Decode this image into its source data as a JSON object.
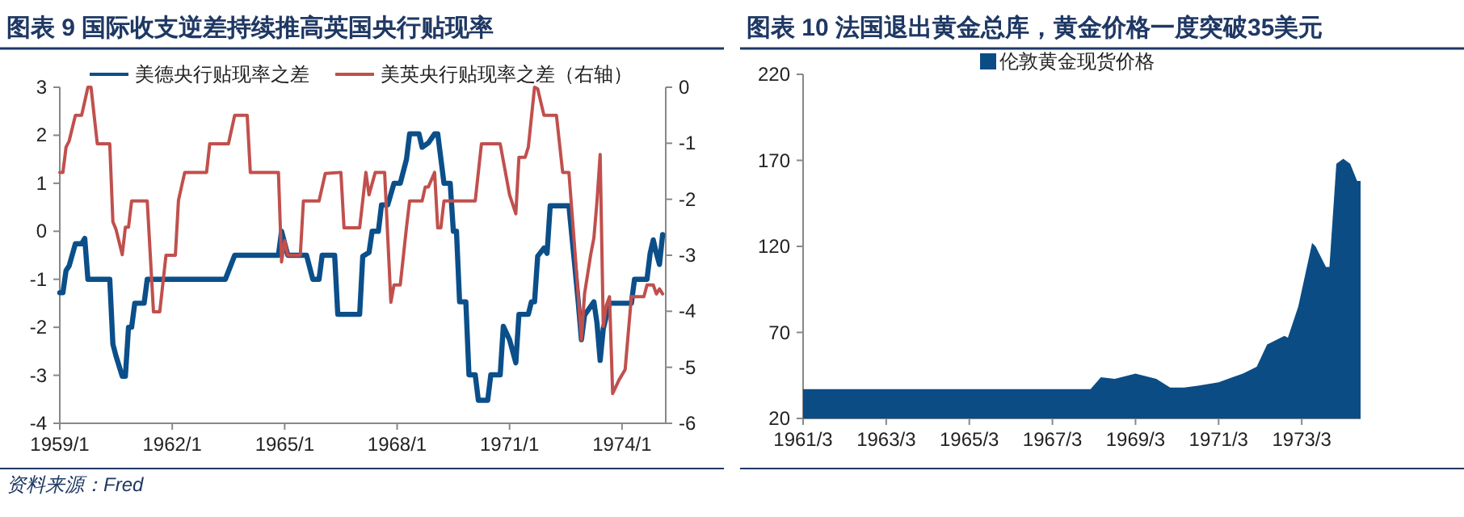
{
  "chart_data": [
    {
      "type": "line",
      "title": "图表 9  国际收支逆差持续推高英国央行贴现率",
      "legend": "top",
      "grid": false,
      "xlim": [
        "1959-01",
        "1975-03"
      ],
      "xticks": [
        {
          "value": "1959-01",
          "label": "1959/1"
        },
        {
          "value": "1962-01",
          "label": "1962/1"
        },
        {
          "value": "1965-01",
          "label": "1965/1"
        },
        {
          "value": "1968-01",
          "label": "1968/1"
        },
        {
          "value": "1971-01",
          "label": "1971/1"
        },
        {
          "value": "1974-01",
          "label": "1974/1"
        }
      ],
      "ylim": [
        -4,
        3
      ],
      "yticks": [
        -4,
        -3,
        -2,
        -1,
        0,
        1,
        2,
        3
      ],
      "y2lim": [
        -6,
        0
      ],
      "y2ticks": [
        -6,
        -5,
        -4,
        -3,
        -2,
        -1,
        0
      ],
      "annotations": [
        "资料来源：Fred"
      ],
      "series": [
        {
          "name": "美德央行贴现率之差",
          "color": "#0b4f8a",
          "axis": "y",
          "x": [
            "1959-01",
            "1959-02",
            "1959-03",
            "1959-04",
            "1959-06",
            "1959-08",
            "1959-09",
            "1959-10",
            "1960-05",
            "1960-06",
            "1960-07",
            "1960-09",
            "1960-10",
            "1960-11",
            "1960-12",
            "1961-01",
            "1961-04",
            "1961-05",
            "1963-06",
            "1963-09",
            "1964-11",
            "1964-12",
            "1965-02",
            "1965-08",
            "1965-10",
            "1965-12",
            "1966-01",
            "1966-05",
            "1966-06",
            "1967-01",
            "1967-02",
            "1967-04",
            "1967-05",
            "1967-07",
            "1967-08",
            "1967-10",
            "1967-12",
            "1968-02",
            "1968-04",
            "1968-05",
            "1968-08",
            "1968-09",
            "1968-11",
            "1969-01",
            "1969-02",
            "1969-04",
            "1969-06",
            "1969-07",
            "1969-08",
            "1969-09",
            "1969-11",
            "1969-12",
            "1970-02",
            "1970-03",
            "1970-06",
            "1970-07",
            "1970-10",
            "1970-11",
            "1971-01",
            "1971-03",
            "1971-04",
            "1971-07",
            "1971-08",
            "1971-09",
            "1971-10",
            "1971-12",
            "1972-01",
            "1972-02",
            "1972-08",
            "1972-10",
            "1972-11",
            "1972-12",
            "1973-01",
            "1973-04",
            "1973-05",
            "1973-06",
            "1973-07",
            "1973-09",
            "1974-04",
            "1974-05",
            "1974-09",
            "1974-10",
            "1974-11",
            "1974-12",
            "1975-01",
            "1975-02"
          ],
          "values": [
            -1.28,
            -1.28,
            -0.82,
            -0.72,
            -0.26,
            -0.26,
            -0.15,
            -1.0,
            -1.0,
            -2.35,
            -2.6,
            -3.02,
            -3.02,
            -2.0,
            -2.0,
            -1.5,
            -1.5,
            -1.0,
            -1.0,
            -0.5,
            -0.5,
            0.0,
            -0.5,
            -0.5,
            -1.0,
            -1.0,
            -0.5,
            -0.5,
            -1.73,
            -1.73,
            -0.52,
            -0.44,
            0.0,
            0.0,
            0.55,
            0.55,
            1.0,
            1.0,
            1.5,
            2.03,
            2.03,
            1.75,
            1.84,
            2.03,
            2.03,
            1.0,
            1.0,
            0.0,
            0.0,
            -1.47,
            -1.47,
            -2.99,
            -2.99,
            -3.52,
            -3.52,
            -2.99,
            -2.99,
            -1.98,
            -2.26,
            -2.74,
            -1.73,
            -1.73,
            -1.47,
            -1.47,
            -0.52,
            -0.35,
            -0.46,
            0.53,
            0.53,
            -0.8,
            -1.49,
            -2.26,
            -1.75,
            -1.47,
            -1.92,
            -2.69,
            -2.03,
            -1.5,
            -1.5,
            -1.0,
            -1.0,
            -0.46,
            -0.18,
            -0.46,
            -0.69,
            -0.07
          ]
        },
        {
          "name": "美英央行贴现率之差（右轴）",
          "color": "#c0504d",
          "axis": "y2",
          "x": [
            "1959-01",
            "1959-02",
            "1959-03",
            "1959-04",
            "1959-06",
            "1959-08",
            "1959-10",
            "1959-11",
            "1960-01",
            "1960-05",
            "1960-06",
            "1960-07",
            "1960-09",
            "1960-10",
            "1960-11",
            "1960-12",
            "1961-05",
            "1961-07",
            "1961-09",
            "1961-11",
            "1962-02",
            "1962-03",
            "1962-05",
            "1962-12",
            "1963-01",
            "1963-07",
            "1963-09",
            "1964-01",
            "1964-02",
            "1964-11",
            "1964-12",
            "1965-01",
            "1965-02",
            "1965-06",
            "1965-07",
            "1965-12",
            "1966-02",
            "1966-07",
            "1966-08",
            "1967-01",
            "1967-02",
            "1967-03",
            "1967-04",
            "1967-06",
            "1967-09",
            "1967-11",
            "1967-12",
            "1968-02",
            "1968-04",
            "1968-05",
            "1968-09",
            "1968-10",
            "1968-11",
            "1969-01",
            "1969-02",
            "1969-03",
            "1969-04",
            "1970-02",
            "1970-04",
            "1970-10",
            "1971-01",
            "1971-03",
            "1971-04",
            "1971-06",
            "1971-07",
            "1971-09",
            "1971-10",
            "1971-12",
            "1972-04",
            "1972-06",
            "1972-08",
            "1972-10",
            "1972-12",
            "1973-01",
            "1973-03",
            "1973-04",
            "1973-05",
            "1973-06",
            "1973-07",
            "1973-08",
            "1973-09",
            "1973-10",
            "1973-12",
            "1974-02",
            "1974-04",
            "1974-08",
            "1974-09",
            "1974-11",
            "1974-12",
            "1975-01",
            "1975-02"
          ],
          "values": [
            -1.52,
            -1.52,
            -1.07,
            -0.96,
            -0.5,
            -0.5,
            0,
            0,
            -1.01,
            -1.01,
            -2.4,
            -2.54,
            -2.99,
            -2.5,
            -2.5,
            -2.03,
            -2.03,
            -4.01,
            -4.01,
            -3.0,
            -3.0,
            -2.02,
            -1.52,
            -1.52,
            -1.01,
            -1.01,
            -0.5,
            -0.5,
            -1.52,
            -1.52,
            -3.12,
            -2.74,
            -3.0,
            -3.0,
            -2.03,
            -2.03,
            -1.54,
            -1.52,
            -2.51,
            -2.51,
            -2.02,
            -1.52,
            -1.92,
            -1.52,
            -1.52,
            -3.84,
            -3.53,
            -3.53,
            -2.5,
            -2.03,
            -2.03,
            -1.78,
            -1.78,
            -1.52,
            -2.51,
            -2.51,
            -2.03,
            -2.03,
            -1.01,
            -1.01,
            -1.92,
            -2.26,
            -1.25,
            -1.25,
            -1.07,
            0,
            -0.03,
            -0.5,
            -0.5,
            -1.52,
            -1.52,
            -2.98,
            -4.51,
            -3.69,
            -2.98,
            -2.69,
            -2.03,
            -1.2,
            -4.27,
            -3.89,
            -3.74,
            -5.47,
            -5.23,
            -5.04,
            -3.74,
            -3.74,
            -3.53,
            -3.53,
            -3.69,
            -3.6,
            -3.69
          ]
        }
      ]
    },
    {
      "type": "area",
      "title": "图表 10  法国退出黄金总库，黄金价格一度突破35美元",
      "legend": "top",
      "grid": false,
      "xlim": [
        "1961-03",
        "1974-08"
      ],
      "xticks": [
        {
          "value": "1961-03",
          "label": "1961/3"
        },
        {
          "value": "1963-03",
          "label": "1963/3"
        },
        {
          "value": "1965-03",
          "label": "1965/3"
        },
        {
          "value": "1967-03",
          "label": "1967/3"
        },
        {
          "value": "1969-03",
          "label": "1969/3"
        },
        {
          "value": "1971-03",
          "label": "1971/3"
        },
        {
          "value": "1973-03",
          "label": "1973/3"
        }
      ],
      "ylim": [
        20,
        220
      ],
      "yticks": [
        20,
        70,
        120,
        170,
        220
      ],
      "series": [
        {
          "name": "伦敦黄金现货价格",
          "color": "#0b4c85",
          "x": [
            "1961-03",
            "1968-02",
            "1968-05",
            "1968-09",
            "1969-03",
            "1969-09",
            "1970-01",
            "1970-05",
            "1970-09",
            "1971-03",
            "1971-07",
            "1971-10",
            "1972-02",
            "1972-05",
            "1972-10",
            "1972-11",
            "1973-02",
            "1973-06",
            "1973-07",
            "1973-10",
            "1973-11",
            "1974-01",
            "1974-03",
            "1974-05",
            "1974-07",
            "1974-08"
          ],
          "values": [
            37,
            37,
            44,
            43,
            46,
            43,
            38,
            38,
            39,
            41,
            44,
            46,
            50,
            63,
            68,
            67,
            85,
            122,
            120,
            108,
            108,
            168,
            171,
            168,
            158,
            158
          ]
        }
      ]
    }
  ]
}
